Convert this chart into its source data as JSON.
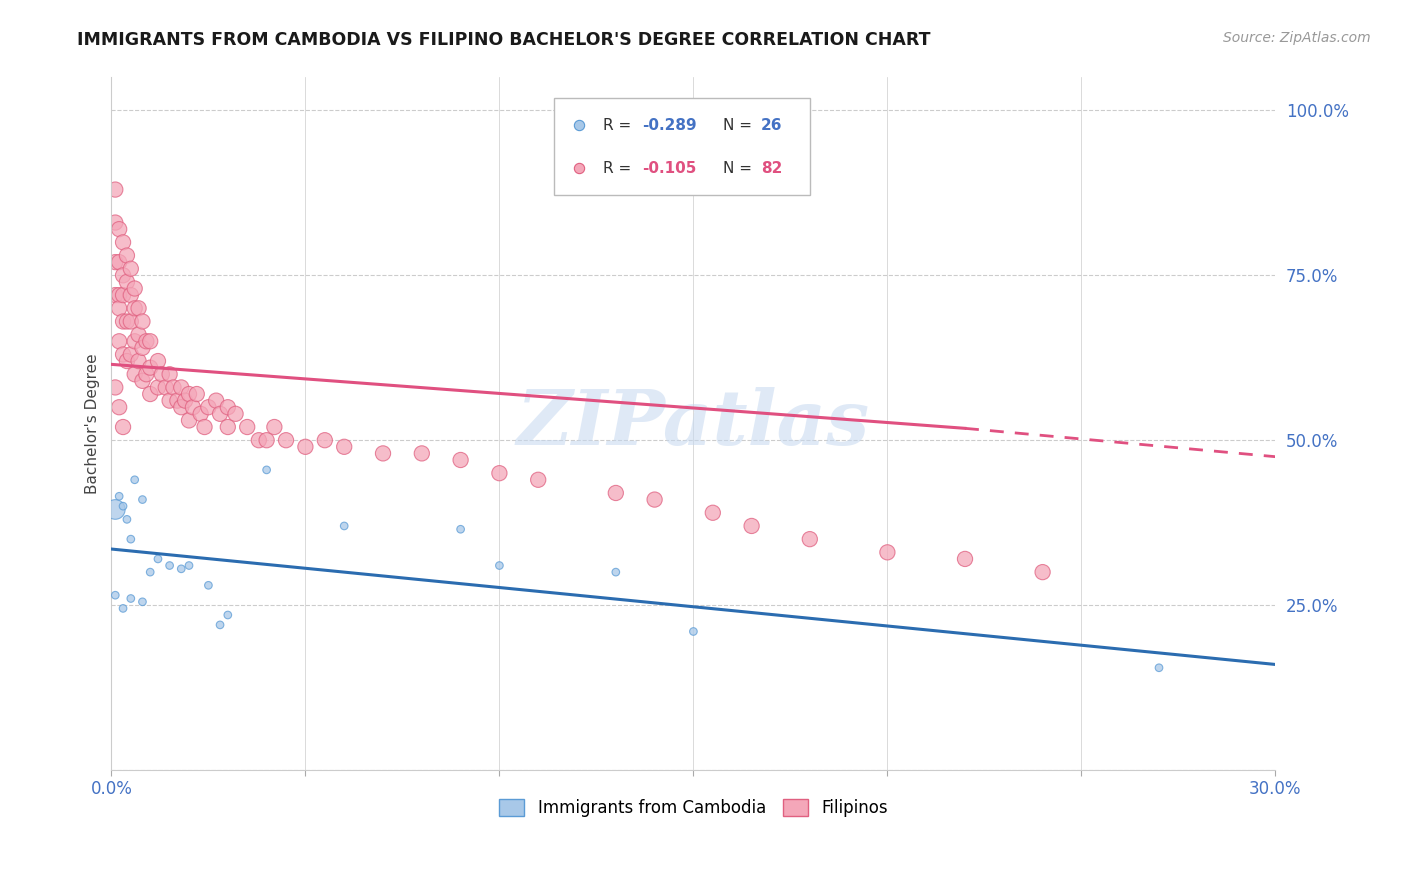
{
  "title": "IMMIGRANTS FROM CAMBODIA VS FILIPINO BACHELOR'S DEGREE CORRELATION CHART",
  "source": "Source: ZipAtlas.com",
  "ylabel": "Bachelor's Degree",
  "watermark": "ZIPatlas",
  "xlim": [
    0.0,
    0.3
  ],
  "ylim": [
    0.0,
    1.05
  ],
  "xticks": [
    0.0,
    0.05,
    0.1,
    0.15,
    0.2,
    0.25,
    0.3
  ],
  "xticklabels": [
    "0.0%",
    "",
    "",
    "",
    "",
    "",
    "30.0%"
  ],
  "yticks": [
    0.0,
    0.25,
    0.5,
    0.75,
    1.0
  ],
  "yticklabels_right": [
    "",
    "25.0%",
    "50.0%",
    "75.0%",
    "100.0%"
  ],
  "color_cambodia": "#a8c8e8",
  "color_cambodia_edge": "#5b9bd5",
  "color_filipino": "#f4a7b9",
  "color_filipino_edge": "#e06080",
  "color_cambodia_line": "#2b6cb0",
  "color_filipino_line": "#e05080",
  "background_color": "#ffffff",
  "grid_color": "#cccccc",
  "cambodia_x": [
    0.001,
    0.002,
    0.003,
    0.004,
    0.005,
    0.006,
    0.008,
    0.01,
    0.012,
    0.015,
    0.018,
    0.02,
    0.025,
    0.028,
    0.03,
    0.04,
    0.06,
    0.09,
    0.1,
    0.13,
    0.15,
    0.27,
    0.001,
    0.003,
    0.005,
    0.008
  ],
  "cambodia_y": [
    0.395,
    0.415,
    0.4,
    0.38,
    0.35,
    0.44,
    0.41,
    0.3,
    0.32,
    0.31,
    0.305,
    0.31,
    0.28,
    0.22,
    0.235,
    0.455,
    0.37,
    0.365,
    0.31,
    0.3,
    0.21,
    0.155,
    0.265,
    0.245,
    0.26,
    0.255
  ],
  "cambodia_size": [
    200,
    30,
    30,
    30,
    30,
    30,
    30,
    30,
    30,
    30,
    30,
    30,
    30,
    30,
    30,
    30,
    30,
    30,
    30,
    30,
    30,
    30,
    30,
    30,
    30,
    30
  ],
  "filipino_x": [
    0.001,
    0.001,
    0.001,
    0.001,
    0.002,
    0.002,
    0.002,
    0.002,
    0.002,
    0.003,
    0.003,
    0.003,
    0.003,
    0.003,
    0.004,
    0.004,
    0.004,
    0.004,
    0.005,
    0.005,
    0.005,
    0.005,
    0.006,
    0.006,
    0.006,
    0.006,
    0.007,
    0.007,
    0.007,
    0.008,
    0.008,
    0.008,
    0.009,
    0.009,
    0.01,
    0.01,
    0.01,
    0.012,
    0.012,
    0.013,
    0.014,
    0.015,
    0.015,
    0.016,
    0.017,
    0.018,
    0.018,
    0.019,
    0.02,
    0.02,
    0.021,
    0.022,
    0.023,
    0.024,
    0.025,
    0.027,
    0.028,
    0.03,
    0.03,
    0.032,
    0.035,
    0.038,
    0.04,
    0.042,
    0.045,
    0.05,
    0.055,
    0.06,
    0.07,
    0.08,
    0.09,
    0.1,
    0.11,
    0.13,
    0.14,
    0.155,
    0.165,
    0.18,
    0.2,
    0.22,
    0.24,
    0.001,
    0.002,
    0.003
  ],
  "filipino_y": [
    0.88,
    0.83,
    0.77,
    0.72,
    0.82,
    0.77,
    0.72,
    0.7,
    0.65,
    0.8,
    0.75,
    0.72,
    0.68,
    0.63,
    0.78,
    0.74,
    0.68,
    0.62,
    0.76,
    0.72,
    0.68,
    0.63,
    0.73,
    0.7,
    0.65,
    0.6,
    0.7,
    0.66,
    0.62,
    0.68,
    0.64,
    0.59,
    0.65,
    0.6,
    0.65,
    0.61,
    0.57,
    0.62,
    0.58,
    0.6,
    0.58,
    0.6,
    0.56,
    0.58,
    0.56,
    0.58,
    0.55,
    0.56,
    0.57,
    0.53,
    0.55,
    0.57,
    0.54,
    0.52,
    0.55,
    0.56,
    0.54,
    0.55,
    0.52,
    0.54,
    0.52,
    0.5,
    0.5,
    0.52,
    0.5,
    0.49,
    0.5,
    0.49,
    0.48,
    0.48,
    0.47,
    0.45,
    0.44,
    0.42,
    0.41,
    0.39,
    0.37,
    0.35,
    0.33,
    0.32,
    0.3,
    0.58,
    0.55,
    0.52
  ],
  "filipino_size": [
    30,
    30,
    30,
    30,
    30,
    30,
    30,
    30,
    30,
    30,
    30,
    30,
    30,
    30,
    30,
    30,
    30,
    30,
    30,
    30,
    30,
    30,
    30,
    30,
    30,
    30,
    30,
    30,
    30,
    30,
    30,
    30,
    30,
    30,
    30,
    30,
    30,
    30,
    30,
    30,
    30,
    30,
    30,
    30,
    30,
    30,
    30,
    30,
    30,
    30,
    30,
    30,
    30,
    30,
    30,
    30,
    30,
    30,
    30,
    30,
    30,
    30,
    30,
    30,
    30,
    30,
    30,
    30,
    30,
    30,
    30,
    30,
    30,
    30,
    30,
    30,
    30,
    30,
    30,
    30,
    30,
    30,
    30,
    30
  ],
  "cam_line_x0": 0.0,
  "cam_line_x1": 0.3,
  "cam_line_y0": 0.335,
  "cam_line_y1": 0.16,
  "fil_line_x0": 0.0,
  "fil_line_x1_solid": 0.22,
  "fil_line_x1_dash": 0.3,
  "fil_line_y0": 0.615,
  "fil_line_y1_solid": 0.518,
  "fil_line_y1_dash": 0.475
}
